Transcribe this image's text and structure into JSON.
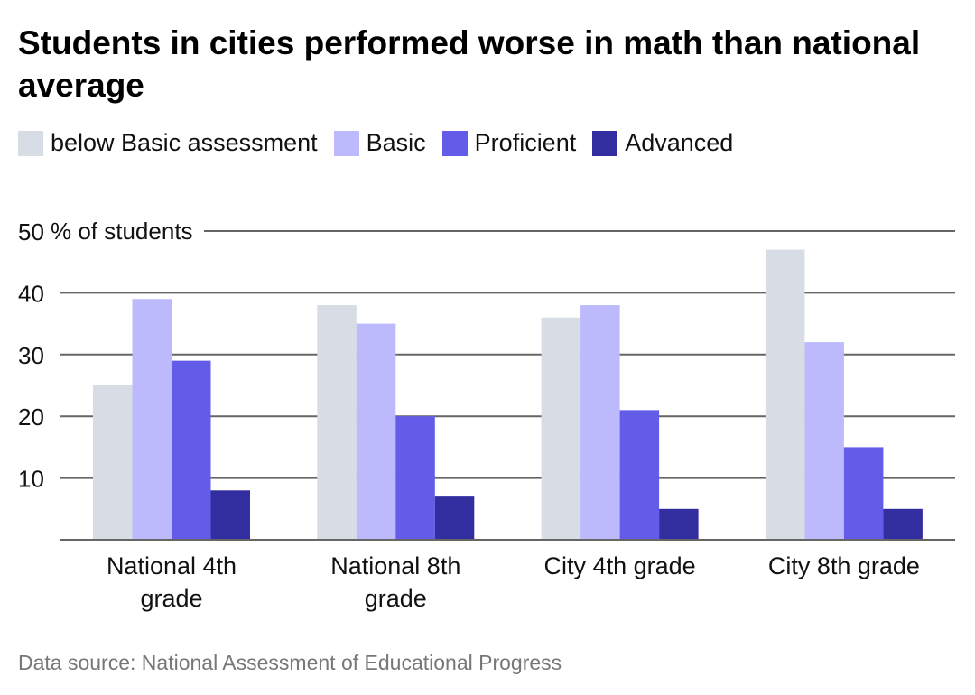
{
  "title": "Students in cities performed worse in math than national average",
  "source": "Data source: National Assessment of Educational Progress",
  "chart_data": {
    "type": "bar",
    "title": "Students in cities performed worse in math than national average",
    "ylabel": "% of students",
    "ylim": [
      0,
      50
    ],
    "yticks": [
      10,
      20,
      30,
      40,
      50
    ],
    "grid": true,
    "legend_position": "top-left",
    "categories": [
      [
        "National 4th",
        "grade"
      ],
      [
        "National 8th",
        "grade"
      ],
      [
        "City 4th grade"
      ],
      [
        "City 8th grade"
      ]
    ],
    "series": [
      {
        "name": "below Basic assessment",
        "color": "#d8dce5",
        "values": [
          25,
          38,
          36,
          47
        ]
      },
      {
        "name": "Basic",
        "color": "#bcbafc",
        "values": [
          39,
          35,
          38,
          32
        ]
      },
      {
        "name": "Proficient",
        "color": "#625ce9",
        "values": [
          29,
          20,
          21,
          15
        ]
      },
      {
        "name": "Advanced",
        "color": "#332ea0",
        "values": [
          8,
          7,
          5,
          5
        ]
      }
    ]
  }
}
